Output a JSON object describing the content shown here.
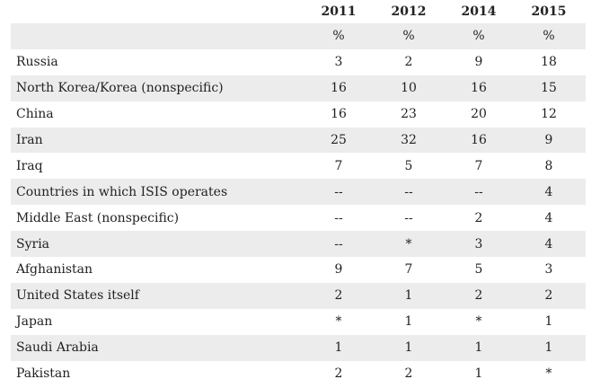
{
  "chart_data": {
    "type": "table",
    "columns": [
      "2011",
      "2012",
      "2014",
      "2015"
    ],
    "unit_row": [
      "%",
      "%",
      "%",
      "%"
    ],
    "rows": [
      {
        "label": "Russia",
        "values": [
          "3",
          "2",
          "9",
          "18"
        ]
      },
      {
        "label": "North Korea/Korea (nonspecific)",
        "values": [
          "16",
          "10",
          "16",
          "15"
        ]
      },
      {
        "label": "China",
        "values": [
          "16",
          "23",
          "20",
          "12"
        ]
      },
      {
        "label": "Iran",
        "values": [
          "25",
          "32",
          "16",
          "9"
        ]
      },
      {
        "label": "Iraq",
        "values": [
          "7",
          "5",
          "7",
          "8"
        ]
      },
      {
        "label": "Countries in which ISIS operates",
        "values": [
          "--",
          "--",
          "--",
          "4"
        ]
      },
      {
        "label": "Middle East (nonspecific)",
        "values": [
          "--",
          "--",
          "2",
          "4"
        ]
      },
      {
        "label": "Syria",
        "values": [
          "--",
          "*",
          "3",
          "4"
        ]
      },
      {
        "label": "Afghanistan",
        "values": [
          "9",
          "7",
          "5",
          "3"
        ]
      },
      {
        "label": "United States itself",
        "values": [
          "2",
          "1",
          "2",
          "2"
        ]
      },
      {
        "label": "Japan",
        "values": [
          "*",
          "1",
          "*",
          "1"
        ]
      },
      {
        "label": "Saudi Arabia",
        "values": [
          "1",
          "1",
          "1",
          "1"
        ]
      },
      {
        "label": "Pakistan",
        "values": [
          "2",
          "2",
          "1",
          "*"
        ]
      }
    ]
  },
  "colors": {
    "shaded_row": "#ececec",
    "text": "#222222"
  }
}
